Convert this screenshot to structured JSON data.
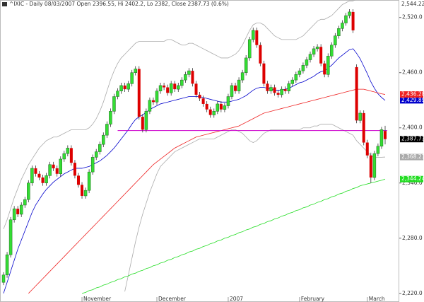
{
  "chart_data": {
    "type": "candlestick",
    "title": "^IXIC - Daily 08/03/2007 Open 2396.55, Hi 2402.2, Lo 2382, Close 2387.73 (0.6%)",
    "categories": [
      null,
      null,
      null,
      null,
      null,
      null,
      null,
      null,
      null,
      null,
      null,
      null,
      null,
      null,
      null,
      null,
      null,
      null,
      null,
      null,
      null,
      null,
      "November",
      null,
      null,
      null,
      null,
      null,
      null,
      null,
      null,
      null,
      null,
      null,
      null,
      null,
      null,
      null,
      null,
      null,
      null,
      null,
      null,
      "December",
      null,
      null,
      null,
      null,
      null,
      null,
      null,
      null,
      null,
      null,
      null,
      null,
      null,
      null,
      null,
      null,
      null,
      null,
      null,
      "2007",
      null,
      null,
      null,
      null,
      null,
      null,
      null,
      null,
      null,
      null,
      null,
      null,
      null,
      null,
      null,
      null,
      null,
      null,
      null,
      "February",
      null,
      null,
      null,
      null,
      null,
      null,
      null,
      null,
      null,
      null,
      null,
      null,
      null,
      null,
      null,
      null,
      null,
      null,
      "March",
      null,
      null,
      null,
      null,
      null
    ],
    "candles": {
      "open": [
        2232,
        2240,
        2262,
        2300,
        2312,
        2306,
        2316,
        2322,
        2340,
        2356,
        2350,
        2346,
        2340,
        2348,
        2360,
        2356,
        2350,
        2366,
        2372,
        2378,
        2362,
        2348,
        2338,
        2326,
        2332,
        2352,
        2368,
        2374,
        2382,
        2392,
        2404,
        2418,
        2434,
        2440,
        2446,
        2442,
        2448,
        2460,
        2464,
        2412,
        2398,
        2418,
        2430,
        2428,
        2440,
        2446,
        2444,
        2438,
        2448,
        2442,
        2446,
        2452,
        2458,
        2462,
        2448,
        2436,
        2432,
        2426,
        2420,
        2414,
        2418,
        2426,
        2420,
        2424,
        2434,
        2446,
        2440,
        2452,
        2460,
        2476,
        2496,
        2506,
        2490,
        2470,
        2448,
        2440,
        2444,
        2438,
        2436,
        2442,
        2440,
        2448,
        2452,
        2458,
        2462,
        2468,
        2474,
        2480,
        2486,
        2488,
        2470,
        2458,
        2478,
        2490,
        2500,
        2508,
        2514,
        2522,
        2526,
        2466,
        2408,
        2416,
        2384,
        2370,
        2346,
        2372,
        2380,
        2396.55
      ],
      "high": [
        2243,
        2265,
        2303,
        2315,
        2315,
        2319,
        2325,
        2343,
        2359,
        2359,
        2353,
        2349,
        2351,
        2363,
        2363,
        2359,
        2369,
        2375,
        2381,
        2381,
        2365,
        2351,
        2341,
        2335,
        2355,
        2371,
        2377,
        2385,
        2395,
        2407,
        2421,
        2437,
        2443,
        2449,
        2449,
        2451,
        2463,
        2467,
        2467,
        2415,
        2421,
        2433,
        2433,
        2443,
        2449,
        2449,
        2447,
        2451,
        2451,
        2449,
        2455,
        2461,
        2465,
        2465,
        2451,
        2439,
        2435,
        2429,
        2423,
        2421,
        2429,
        2429,
        2427,
        2437,
        2449,
        2449,
        2455,
        2463,
        2479,
        2499,
        2509,
        2509,
        2493,
        2473,
        2451,
        2447,
        2447,
        2441,
        2445,
        2445,
        2451,
        2455,
        2461,
        2465,
        2471,
        2477,
        2483,
        2489,
        2491,
        2491,
        2473,
        2481,
        2493,
        2503,
        2511,
        2517,
        2525,
        2529,
        2529,
        2469,
        2419,
        2419,
        2387,
        2373,
        2375,
        2383,
        2401,
        2402.2
      ],
      "low": [
        2229,
        2237,
        2259,
        2297,
        2303,
        2303,
        2313,
        2319,
        2337,
        2347,
        2343,
        2337,
        2337,
        2345,
        2353,
        2347,
        2347,
        2363,
        2369,
        2359,
        2345,
        2335,
        2323,
        2323,
        2329,
        2349,
        2365,
        2371,
        2379,
        2389,
        2401,
        2415,
        2431,
        2437,
        2439,
        2439,
        2445,
        2457,
        2409,
        2395,
        2395,
        2415,
        2425,
        2425,
        2437,
        2441,
        2435,
        2435,
        2439,
        2439,
        2443,
        2449,
        2455,
        2445,
        2433,
        2429,
        2423,
        2417,
        2411,
        2411,
        2415,
        2417,
        2417,
        2421,
        2431,
        2437,
        2437,
        2449,
        2457,
        2473,
        2493,
        2487,
        2467,
        2445,
        2437,
        2437,
        2435,
        2433,
        2433,
        2437,
        2437,
        2445,
        2449,
        2455,
        2459,
        2465,
        2471,
        2477,
        2483,
        2467,
        2455,
        2455,
        2475,
        2487,
        2497,
        2505,
        2511,
        2519,
        2503,
        2405,
        2405,
        2381,
        2367,
        2340,
        2343,
        2369,
        2377,
        2382
      ],
      "close": [
        2240,
        2262,
        2300,
        2312,
        2306,
        2316,
        2322,
        2340,
        2356,
        2350,
        2346,
        2340,
        2348,
        2360,
        2356,
        2350,
        2366,
        2372,
        2378,
        2362,
        2348,
        2338,
        2326,
        2332,
        2352,
        2368,
        2374,
        2382,
        2392,
        2404,
        2418,
        2434,
        2440,
        2446,
        2442,
        2448,
        2460,
        2464,
        2412,
        2398,
        2418,
        2430,
        2428,
        2440,
        2446,
        2444,
        2438,
        2448,
        2442,
        2446,
        2452,
        2458,
        2462,
        2448,
        2436,
        2432,
        2426,
        2420,
        2414,
        2418,
        2426,
        2420,
        2424,
        2434,
        2446,
        2440,
        2452,
        2460,
        2476,
        2496,
        2506,
        2490,
        2470,
        2448,
        2440,
        2444,
        2438,
        2436,
        2442,
        2440,
        2448,
        2452,
        2458,
        2462,
        2468,
        2474,
        2480,
        2486,
        2488,
        2470,
        2458,
        2478,
        2490,
        2500,
        2508,
        2514,
        2522,
        2526,
        2506,
        2408,
        2416,
        2384,
        2370,
        2346,
        2372,
        2380,
        2398,
        2387.73
      ],
      "up_color": "#33dd33",
      "down_color": "#dd0000",
      "end_label": "2,387.73",
      "end_color": "#000000"
    },
    "series": [
      {
        "color": "#aaaaaa",
        "end_label": "2,544.22",
        "values": [
          2290,
          2300,
          2312,
          2324,
          2334,
          2344,
          2352,
          2360,
          2366,
          2372,
          2378,
          2382,
          2386,
          2388,
          2390,
          2390,
          2392,
          2394,
          2396,
          2398,
          2398,
          2398,
          2398,
          2398,
          2400,
          2404,
          2410,
          2418,
          2428,
          2440,
          2452,
          2462,
          2470,
          2476,
          2480,
          2484,
          2488,
          2492,
          2494,
          2494,
          2494,
          2494,
          2494,
          2494,
          2494,
          2494,
          2496,
          2496,
          2494,
          2492,
          2490,
          2490,
          2492,
          2492,
          2490,
          2488,
          2486,
          2484,
          2482,
          2480,
          2478,
          2476,
          2476,
          2476,
          2478,
          2480,
          2484,
          2490,
          2498,
          2506,
          2512,
          2514,
          2514,
          2512,
          2508,
          2504,
          2500,
          2498,
          2496,
          2496,
          2496,
          2496,
          2496,
          2498,
          2500,
          2504,
          2508,
          2512,
          2516,
          2518,
          2518,
          2520,
          2522,
          2526,
          2530,
          2534,
          2536,
          2538,
          2538,
          2540,
          2542,
          2544,
          2545,
          2546,
          2546,
          2545,
          2545,
          2544.22
        ]
      },
      {
        "color": "#aaaaaa",
        "end_label": "2,368.21",
        "values": [
          null,
          null,
          null,
          null,
          null,
          null,
          null,
          null,
          null,
          null,
          null,
          null,
          null,
          null,
          null,
          null,
          null,
          null,
          null,
          null,
          null,
          null,
          null,
          null,
          null,
          null,
          null,
          null,
          null,
          null,
          null,
          null,
          null,
          null,
          2222,
          2240,
          2258,
          2276,
          2292,
          2306,
          2318,
          2330,
          2340,
          2350,
          2358,
          2362,
          2366,
          2370,
          2374,
          2376,
          2378,
          2380,
          2382,
          2384,
          2386,
          2388,
          2388,
          2388,
          2388,
          2388,
          2390,
          2392,
          2394,
          2396,
          2398,
          2398,
          2396,
          2394,
          2390,
          2386,
          2384,
          2386,
          2390,
          2394,
          2396,
          2398,
          2398,
          2398,
          2398,
          2398,
          2398,
          2398,
          2398,
          2398,
          2400,
          2400,
          2400,
          2402,
          2402,
          2404,
          2404,
          2404,
          2404,
          2402,
          2400,
          2398,
          2396,
          2394,
          2392,
          2386,
          2382,
          2378,
          2374,
          2370,
          2368,
          2368,
          2368,
          2368.21
        ]
      },
      {
        "color": "#0000cc",
        "end_label": "2,429.89",
        "values": [
          2220,
          2232,
          2244,
          2256,
          2268,
          2278,
          2288,
          2298,
          2308,
          2316,
          2322,
          2328,
          2333,
          2337,
          2341,
          2344,
          2347,
          2350,
          2352,
          2354,
          2356,
          2356,
          2356,
          2357,
          2358,
          2360,
          2362,
          2364,
          2367,
          2370,
          2374,
          2378,
          2383,
          2388,
          2393,
          2398,
          2404,
          2409,
          2412,
          2414,
          2417,
          2420,
          2422,
          2424,
          2426,
          2427,
          2428,
          2429,
          2430,
          2431,
          2432,
          2433,
          2434,
          2434,
          2434,
          2434,
          2433,
          2432,
          2431,
          2430,
          2429,
          2428,
          2428,
          2428,
          2429,
          2430,
          2431,
          2433,
          2435,
          2438,
          2441,
          2443,
          2444,
          2444,
          2443,
          2442,
          2441,
          2441,
          2441,
          2442,
          2443,
          2445,
          2447,
          2449,
          2450,
          2452,
          2454,
          2456,
          2459,
          2461,
          2462,
          2465,
          2468,
          2472,
          2476,
          2479,
          2482,
          2485,
          2486,
          2481,
          2475,
          2467,
          2459,
          2450,
          2443,
          2437,
          2433,
          2429.89
        ]
      },
      {
        "color": "#ee2222",
        "end_label": "2,436.28",
        "values": [
          null,
          null,
          null,
          null,
          null,
          null,
          null,
          2220,
          2224,
          2228,
          2232,
          2236,
          2240,
          2244,
          2248,
          2252,
          2256,
          2260,
          2264,
          2268,
          2272,
          2276,
          2280,
          2284,
          2288,
          2292,
          2296,
          2300,
          2304,
          2308,
          2312,
          2316,
          2320,
          2324,
          2328,
          2332,
          2336,
          2340,
          2344,
          2348,
          2352,
          2356,
          2360,
          2363,
          2366,
          2369,
          2372,
          2375,
          2378,
          2380,
          2382,
          2384,
          2386,
          2388,
          2390,
          2391,
          2392,
          2393,
          2394,
          2395,
          2396,
          2397,
          2398,
          2399,
          2400,
          2401,
          2402,
          2404,
          2406,
          2408,
          2410,
          2412,
          2414,
          2416,
          2417,
          2418,
          2419,
          2420,
          2421,
          2422,
          2423,
          2424,
          2425,
          2426,
          2427,
          2428,
          2429,
          2430,
          2431,
          2432,
          2433,
          2434,
          2435,
          2436,
          2437,
          2438,
          2439,
          2440,
          2441,
          2442,
          2442,
          2442,
          2441,
          2440,
          2439,
          2438,
          2437,
          2436.28
        ]
      },
      {
        "color": "#22dd22",
        "end_label": "2,344.24",
        "values": [
          null,
          null,
          null,
          null,
          null,
          null,
          null,
          null,
          null,
          null,
          null,
          null,
          null,
          null,
          null,
          null,
          null,
          null,
          null,
          null,
          null,
          null,
          2220,
          2221,
          2223,
          2224,
          2226,
          2227,
          2229,
          2230,
          2232,
          2233,
          2235,
          2236,
          2238,
          2239,
          2241,
          2242,
          2244,
          2245,
          2247,
          2248,
          2250,
          2251,
          2253,
          2254,
          2256,
          2257,
          2259,
          2260,
          2262,
          2263,
          2265,
          2266,
          2268,
          2269,
          2271,
          2272,
          2274,
          2275,
          2277,
          2278,
          2280,
          2281,
          2283,
          2284,
          2286,
          2287,
          2289,
          2290,
          2292,
          2293,
          2295,
          2296,
          2298,
          2299,
          2301,
          2302,
          2304,
          2305,
          2307,
          2308,
          2310,
          2311,
          2313,
          2314,
          2316,
          2317,
          2319,
          2320,
          2322,
          2323,
          2325,
          2326,
          2328,
          2329,
          2331,
          2332,
          2334,
          2335,
          2337,
          2338,
          2339,
          2340,
          2341,
          2342,
          2343,
          2344.24
        ]
      }
    ],
    "reference_line": {
      "value": 2397,
      "color": "#cc00cc"
    },
    "ylim": [
      2216,
      2539
    ],
    "yticks": [
      {
        "value": 2220,
        "label": "2,220.0"
      },
      {
        "value": 2280,
        "label": "2,280.0"
      },
      {
        "value": 2340,
        "label": "2,340.0"
      },
      {
        "value": 2400,
        "label": "2,400.0"
      },
      {
        "value": 2460,
        "label": "2,460.0"
      },
      {
        "value": 2520,
        "label": "2,520.0"
      }
    ]
  }
}
